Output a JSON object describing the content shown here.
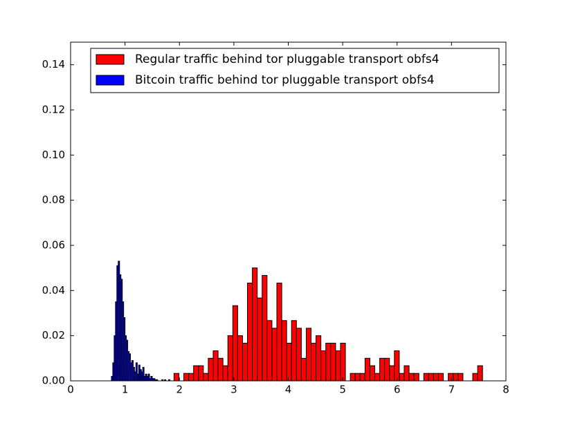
{
  "chart_data": {
    "type": "histogram",
    "xlim": [
      0,
      8
    ],
    "xticks": [
      0,
      1,
      2,
      3,
      4,
      5,
      6,
      7,
      8
    ],
    "ylim": [
      0,
      0.15
    ],
    "yticks": [
      {
        "value": 0,
        "label": "0.00"
      },
      {
        "value": 0.02,
        "label": "0.02"
      },
      {
        "value": 0.04,
        "label": "0.04"
      },
      {
        "value": 0.06,
        "label": "0.06"
      },
      {
        "value": 0.08,
        "label": "0.08"
      },
      {
        "value": 0.1,
        "label": "0.10"
      },
      {
        "value": 0.12,
        "label": "0.12"
      },
      {
        "value": 0.14,
        "label": "0.14"
      }
    ],
    "legend": "upper right",
    "series": [
      {
        "name": "Regular traffic behind tor pluggable transport obfs4",
        "color": "#ff0000",
        "bins": [
          1.9,
          1.99,
          2.08,
          2.17,
          2.26,
          2.35,
          2.44,
          2.53,
          2.62,
          2.71,
          2.8,
          2.89,
          2.98,
          3.07,
          3.16,
          3.25,
          3.34,
          3.43,
          3.52,
          3.61,
          3.7,
          3.79,
          3.88,
          3.97,
          4.06,
          4.15,
          4.24,
          4.33,
          4.42,
          4.51,
          4.6,
          4.69,
          4.78,
          4.87,
          4.96,
          5.05,
          5.14,
          5.23,
          5.32,
          5.41,
          5.5,
          5.59,
          5.68,
          5.77,
          5.86,
          5.95,
          6.04,
          6.13,
          6.22,
          6.31,
          6.4,
          6.49,
          6.58,
          6.67,
          6.76,
          6.85,
          6.94,
          7.03,
          7.12,
          7.21,
          7.3,
          7.39,
          7.48,
          7.57
        ],
        "values": [
          0.0033,
          0,
          0.0033,
          0.0033,
          0.0067,
          0.0067,
          0.0033,
          0.01,
          0.0133,
          0.01,
          0.0067,
          0.02,
          0.0333,
          0.02,
          0.0167,
          0.0433,
          0.05,
          0.0367,
          0.0467,
          0.0267,
          0.0233,
          0.0433,
          0.0267,
          0.0167,
          0.0267,
          0.0233,
          0.01,
          0.0233,
          0.0167,
          0.02,
          0.0133,
          0.0167,
          0.0167,
          0.0133,
          0.0167,
          0,
          0.0033,
          0.0033,
          0.0033,
          0.01,
          0.0067,
          0.0033,
          0.01,
          0.01,
          0.0067,
          0.0133,
          0.0033,
          0.0067,
          0.0033,
          0.0033,
          0,
          0.0033,
          0.0033,
          0.0033,
          0.0033,
          0,
          0.0033,
          0.0033,
          0.0033,
          0,
          0,
          0.0033,
          0.0067
        ]
      },
      {
        "name": "Bitcoin traffic behind tor pluggable transport obfs4",
        "color": "#0000ff",
        "bins": [
          0.75,
          0.775,
          0.8,
          0.825,
          0.85,
          0.875,
          0.9,
          0.925,
          0.95,
          0.975,
          1.0,
          1.025,
          1.05,
          1.075,
          1.1,
          1.125,
          1.15,
          1.175,
          1.2,
          1.225,
          1.25,
          1.275,
          1.3,
          1.325,
          1.35,
          1.375,
          1.4,
          1.425,
          1.45,
          1.475,
          1.5,
          1.525,
          1.55,
          1.575,
          1.6,
          1.625,
          1.65,
          1.675,
          1.7,
          1.725,
          1.75,
          1.775,
          1.8,
          1.825,
          1.85
        ],
        "values": [
          0.002,
          0.008,
          0.02,
          0.035,
          0.051,
          0.053,
          0.047,
          0.045,
          0.035,
          0.028,
          0.02,
          0.018,
          0.013,
          0.012,
          0.008,
          0.009,
          0.006,
          0.004,
          0.008,
          0.003,
          0.007,
          0.005,
          0.004,
          0.006,
          0.002,
          0.003,
          0.002,
          0.003,
          0.001,
          0.002,
          0.001,
          0.001,
          0.0005,
          0.0005,
          0,
          0,
          0,
          0.0005,
          0,
          0.0005,
          0,
          0,
          0.0005,
          0
        ]
      }
    ]
  }
}
